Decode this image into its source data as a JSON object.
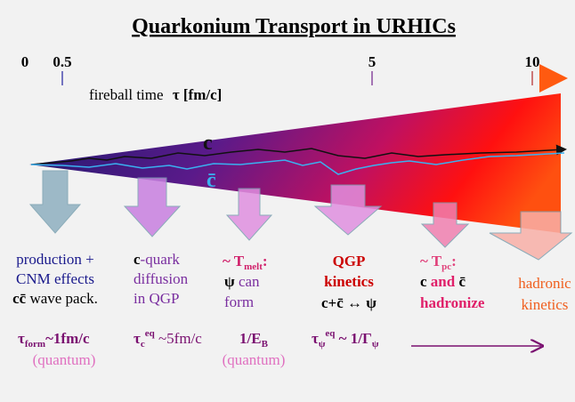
{
  "title": "Quarkonium Transport in URHICs",
  "timeline": {
    "ticks": [
      "0",
      "0.5",
      "5",
      "10"
    ],
    "label": "fireball time",
    "unit": "τ [fm/c]"
  },
  "quarks": {
    "charm": "c",
    "anticharm": "c̄"
  },
  "stages": [
    {
      "parts": [
        "production +",
        "CNM effects",
        "cc̄",
        "wave pack."
      ]
    },
    {
      "parts": [
        "c",
        "-quark",
        "diffusion",
        "in QGP"
      ]
    },
    {
      "parts": [
        "~ T",
        "melt",
        ":",
        "ψ",
        "can",
        "form"
      ]
    },
    {
      "parts": [
        "QGP",
        "kinetics",
        "c+c̄ ↔ ψ"
      ]
    },
    {
      "parts": [
        "~ T",
        "pc",
        ":",
        "c",
        "and",
        "c̄",
        "hadronize"
      ]
    },
    {
      "parts": [
        "hadronic",
        "kinetics"
      ]
    }
  ],
  "scales": [
    {
      "parts": [
        "τ",
        "form",
        "~1fm/c",
        "(quantum)"
      ]
    },
    {
      "parts": [
        "τ",
        "c",
        "eq",
        " ~5fm/c"
      ]
    },
    {
      "parts": [
        "1/E",
        "B",
        "(quantum)"
      ]
    },
    {
      "parts": [
        "τ",
        "ψ",
        "eq",
        " ~ 1/Γ",
        "ψ"
      ]
    }
  ]
}
